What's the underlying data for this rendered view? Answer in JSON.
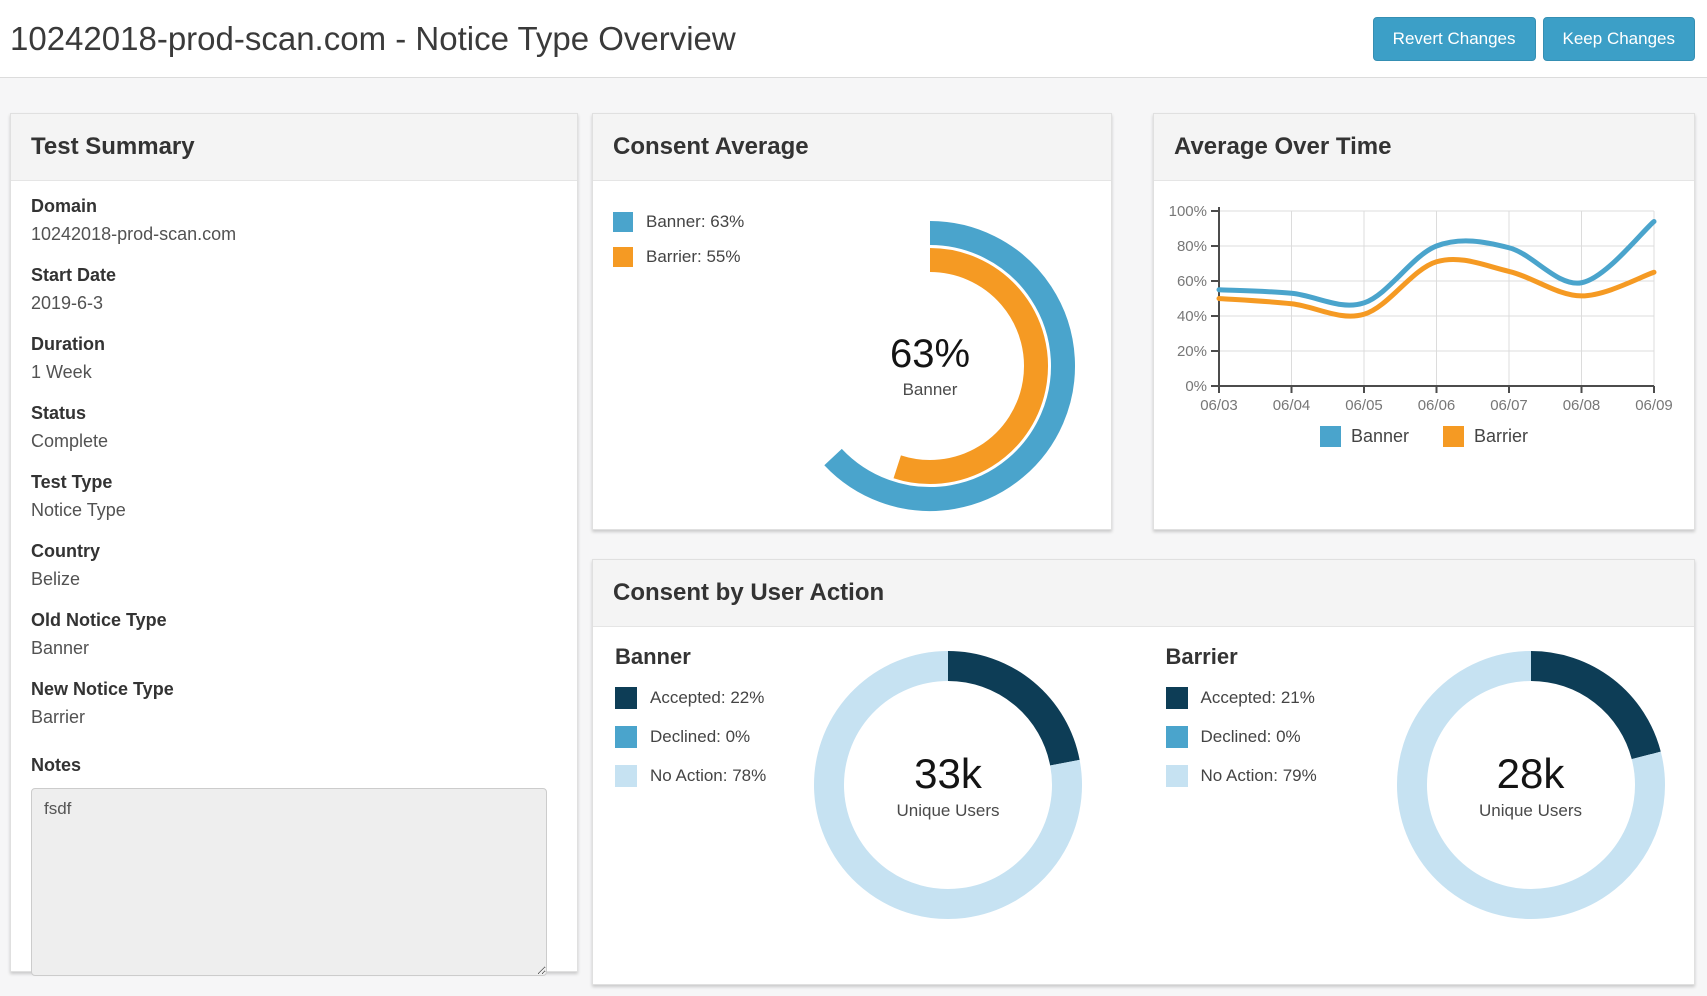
{
  "header": {
    "title": "10242018-prod-scan.com - Notice Type Overview",
    "buttons": [
      {
        "label": "Revert Changes"
      },
      {
        "label": "Keep Changes"
      }
    ]
  },
  "colors": {
    "button_blue": "#3c9fc7",
    "banner_blue": "#4aa4cc",
    "barrier_orange": "#f59a23",
    "accepted_navy": "#0d3d56",
    "declined_blue": "#4aa4cc",
    "no_action_light_blue": "#c6e2f2"
  },
  "test_summary": {
    "title": "Test Summary",
    "fields": [
      {
        "label": "Domain",
        "value": "10242018-prod-scan.com"
      },
      {
        "label": "Start Date",
        "value": "2019-6-3"
      },
      {
        "label": "Duration",
        "value": "1 Week"
      },
      {
        "label": "Status",
        "value": "Complete"
      },
      {
        "label": "Test Type",
        "value": "Notice Type"
      },
      {
        "label": "Country",
        "value": "Belize"
      },
      {
        "label": "Old Notice Type",
        "value": "Banner"
      },
      {
        "label": "New Notice Type",
        "value": "Barrier"
      }
    ],
    "notes_label": "Notes",
    "notes_value": "fsdf"
  },
  "chart_data": [
    {
      "id": "consent-average",
      "type": "gauge",
      "title": "Consent Average",
      "start_angle": "top",
      "direction": "clockwise",
      "series": [
        {
          "name": "Banner",
          "value": 63,
          "color": "#4aa4cc",
          "radius": 133,
          "thickness": 24
        },
        {
          "name": "Barrier",
          "value": 55,
          "color": "#f59a23",
          "radius": 106,
          "thickness": 24
        }
      ],
      "center_value": "63%",
      "center_caption": "Banner"
    },
    {
      "id": "average-over-time",
      "type": "line",
      "title": "Average Over Time",
      "x": [
        "06/03",
        "06/04",
        "06/05",
        "06/06",
        "06/07",
        "06/08",
        "06/09"
      ],
      "series": [
        {
          "name": "Banner",
          "color": "#4aa4cc",
          "values": [
            55,
            53,
            47.5,
            80,
            79,
            59,
            94
          ]
        },
        {
          "name": "Barrier",
          "color": "#f59a23",
          "values": [
            50,
            47,
            41,
            71,
            65.5,
            51.5,
            65
          ]
        }
      ],
      "ylim": [
        0,
        100
      ],
      "yticks": [
        0,
        20,
        40,
        60,
        80,
        100
      ],
      "ytick_suffix": "%",
      "grid": true,
      "smooth": true,
      "legend_position": "bottom"
    },
    {
      "id": "consent-by-user-action",
      "type": "donut",
      "title": "Consent by User Action",
      "charts": [
        {
          "name": "Banner",
          "center_value": "33k",
          "center_caption": "Unique Users",
          "slices": [
            {
              "label": "Accepted",
              "pct": 22,
              "color": "#0d3d56"
            },
            {
              "label": "Declined",
              "pct": 0,
              "color": "#4aa4cc"
            },
            {
              "label": "No Action",
              "pct": 78,
              "color": "#c6e2f2"
            }
          ]
        },
        {
          "name": "Barrier",
          "center_value": "28k",
          "center_caption": "Unique Users",
          "slices": [
            {
              "label": "Accepted",
              "pct": 21,
              "color": "#0d3d56"
            },
            {
              "label": "Declined",
              "pct": 0,
              "color": "#4aa4cc"
            },
            {
              "label": "No Action",
              "pct": 79,
              "color": "#c6e2f2"
            }
          ]
        }
      ]
    }
  ]
}
